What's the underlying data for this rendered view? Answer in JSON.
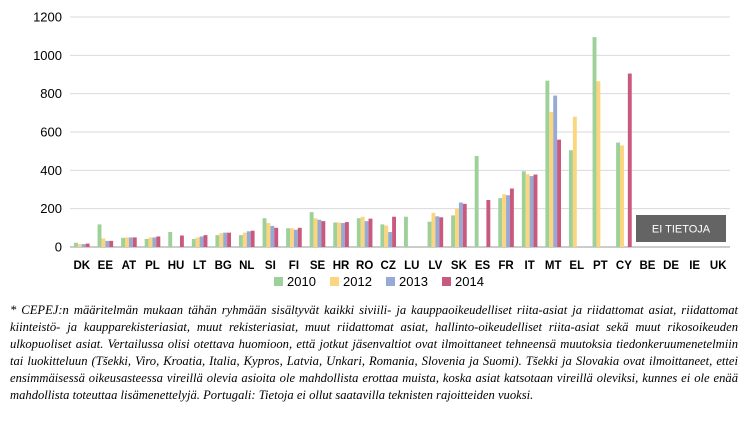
{
  "chart_data": {
    "type": "bar",
    "categories": [
      "DK",
      "EE",
      "AT",
      "PL",
      "HU",
      "LT",
      "BG",
      "NL",
      "SI",
      "FI",
      "SE",
      "HR",
      "RO",
      "CZ",
      "LU",
      "LV",
      "SK",
      "ES",
      "FR",
      "IT",
      "MT",
      "EL",
      "PT",
      "CY",
      "BE",
      "DE",
      "IE",
      "UK"
    ],
    "series": [
      {
        "name": "2010",
        "color": "#9ed09a",
        "values": [
          22,
          118,
          48,
          42,
          78,
          42,
          62,
          62,
          150,
          98,
          182,
          128,
          150,
          118,
          158,
          132,
          165,
          475,
          255,
          395,
          868,
          505,
          1095,
          545,
          null,
          null,
          null,
          null
        ]
      },
      {
        "name": "2012",
        "color": "#fcd67e",
        "values": [
          15,
          45,
          50,
          50,
          null,
          50,
          72,
          75,
          125,
          98,
          150,
          128,
          158,
          112,
          null,
          178,
          200,
          null,
          275,
          380,
          705,
          680,
          865,
          530,
          null,
          null,
          null,
          null
        ]
      },
      {
        "name": "2013",
        "color": "#97aad6",
        "values": [
          15,
          32,
          50,
          50,
          null,
          55,
          75,
          82,
          110,
          90,
          142,
          125,
          135,
          78,
          null,
          160,
          232,
          null,
          270,
          370,
          790,
          null,
          null,
          null,
          null,
          null,
          null,
          null
        ]
      },
      {
        "name": "2014",
        "color": "#c95a7d",
        "values": [
          18,
          32,
          50,
          55,
          60,
          62,
          75,
          85,
          100,
          100,
          135,
          130,
          148,
          158,
          null,
          155,
          225,
          245,
          305,
          378,
          560,
          null,
          null,
          905,
          null,
          null,
          null,
          null
        ]
      }
    ],
    "yticks": [
      0,
      200,
      400,
      600,
      800,
      1000,
      1200
    ],
    "ylim": [
      0,
      1200
    ],
    "grid": true,
    "legend": "bottom-right, inside plot",
    "annotation": "EI TIETOJA"
  },
  "footnote": "* CEPEJ:n määritelmän mukaan tähän ryhmään sisältyvät kaikki siviili- ja kauppaoikeudelliset riita-asiat ja riidattomat asiat, riidattomat kiinteistö- ja kaupparekisteriasiat, muut rekisteriasiat, muut riidattomat asiat, hallinto-oikeudelliset riita-asiat sekä muut rikosoikeuden ulkopuoliset asiat. Vertailussa olisi otettava huomioon, että jotkut jäsenvaltiot ovat ilmoittaneet tehneensä muutoksia tiedonkeruumenetelmiin tai luokitteluun (Tšekki, Viro, Kroatia, Italia, Kypros, Latvia, Unkari, Romania, Slovenia ja Suomi). Tšekki ja Slovakia ovat ilmoittaneet, ettei ensimmäisessä oikeusasteessa vireillä olevia asioita ole mahdollista erottaa muista, koska asiat katsotaan vireillä oleviksi, kunnes ei ole enää mahdollista toteuttaa lisämenettelyjä. Portugali: Tietoja ei ollut saatavilla teknisten rajoitteiden vuoksi."
}
